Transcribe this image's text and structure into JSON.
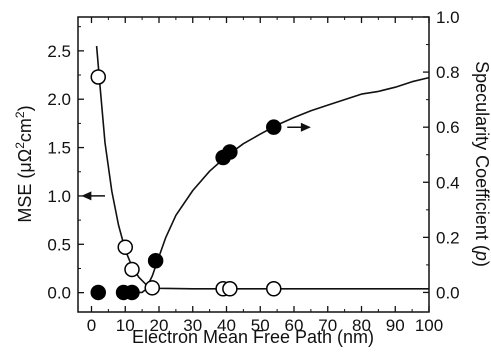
{
  "chart_data": {
    "type": "scatter",
    "title": "",
    "xlabel": "Electron Mean Free Path (nm)",
    "ylabel_left": {
      "prefix": "MSE (",
      "mu": "μΩ",
      "sup1": "2",
      "cm": "cm",
      "sup2": "2",
      "suffix": ")"
    },
    "ylabel_right": {
      "text": "Specularity Coefficient (",
      "p": "p",
      "close": ")"
    },
    "x_ticks": [
      0,
      10,
      20,
      30,
      40,
      50,
      60,
      70,
      80,
      90,
      100
    ],
    "xlim": [
      -4,
      100
    ],
    "y_left_ticks": [
      "0.0",
      "0.5",
      "1.0",
      "1.5",
      "2.0",
      "2.5"
    ],
    "y_left_tick_values": [
      0,
      0.5,
      1.0,
      1.5,
      2.0,
      2.5
    ],
    "ylim_left": [
      -0.2,
      2.85
    ],
    "y_right_ticks": [
      "0.0",
      "0.2",
      "0.4",
      "0.6",
      "0.8",
      "1.0"
    ],
    "y_right_tick_values": [
      0,
      0.2,
      0.4,
      0.6,
      0.8,
      1.0
    ],
    "ylim_right": [
      -0.071,
      1.0
    ],
    "grid": false,
    "series": [
      {
        "marker": "open-circle",
        "axis": "left",
        "points": [
          [
            2,
            2.23
          ],
          [
            10,
            0.47
          ],
          [
            12,
            0.24
          ],
          [
            18,
            0.05
          ],
          [
            39,
            0.04
          ],
          [
            41,
            0.04
          ],
          [
            54,
            0.04
          ]
        ]
      },
      {
        "marker": "filled-circle",
        "axis": "right",
        "points": [
          [
            2,
            0.0
          ],
          [
            9.5,
            0.0
          ],
          [
            12,
            0.0
          ],
          [
            19,
            0.115
          ],
          [
            39,
            0.49
          ],
          [
            41,
            0.51
          ],
          [
            54,
            0.6
          ]
        ]
      }
    ],
    "curves": [
      {
        "axis": "left",
        "points": [
          [
            1.5,
            2.55
          ],
          [
            2.5,
            2.15
          ],
          [
            4,
            1.55
          ],
          [
            6,
            1.05
          ],
          [
            8,
            0.7
          ],
          [
            10,
            0.44
          ],
          [
            12,
            0.27
          ],
          [
            14,
            0.16
          ],
          [
            16,
            0.09
          ],
          [
            18,
            0.055
          ],
          [
            20,
            0.045
          ],
          [
            30,
            0.04
          ],
          [
            50,
            0.04
          ],
          [
            70,
            0.04
          ],
          [
            100,
            0.04
          ]
        ]
      },
      {
        "axis": "right",
        "points": [
          [
            14,
            0.0
          ],
          [
            15,
            0.0
          ],
          [
            16,
            0.01
          ],
          [
            18,
            0.06
          ],
          [
            20,
            0.13
          ],
          [
            22,
            0.2
          ],
          [
            25,
            0.28
          ],
          [
            30,
            0.37
          ],
          [
            35,
            0.44
          ],
          [
            40,
            0.495
          ],
          [
            45,
            0.54
          ],
          [
            50,
            0.575
          ],
          [
            55,
            0.608
          ],
          [
            60,
            0.635
          ],
          [
            65,
            0.66
          ],
          [
            70,
            0.68
          ],
          [
            75,
            0.7
          ],
          [
            80,
            0.72
          ],
          [
            85,
            0.73
          ],
          [
            90,
            0.745
          ],
          [
            95,
            0.765
          ],
          [
            100,
            0.78
          ]
        ]
      }
    ],
    "annotations": [
      {
        "kind": "arrow",
        "direction": "left",
        "axis": "left",
        "x_from": 4,
        "x_to": -3,
        "y": 1.0
      },
      {
        "kind": "arrow",
        "direction": "right",
        "axis": "left",
        "x_from": 58,
        "x_to": 65,
        "y": 1.71
      }
    ]
  }
}
